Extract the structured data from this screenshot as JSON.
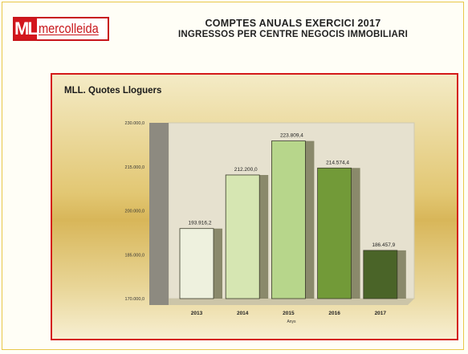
{
  "header": {
    "logo_mark": "ML",
    "logo_text": "mercolleida",
    "title_line1": "COMPTES ANUALS EXERCICI 2017",
    "title_line2": "INGRESSOS PER CENTRE NEGOCIS IMMOBILIARI"
  },
  "colors": {
    "brand_red": "#c8161b",
    "panel_border": "#d41a1a",
    "bar_colors": [
      "#eef1de",
      "#d6e6b2",
      "#b7d68b",
      "#729a38",
      "#4a6428"
    ]
  },
  "chart_data": {
    "type": "bar",
    "title": "MLL. Quotes Lloguers",
    "xlabel": "Anys",
    "ylabel": "",
    "categories": [
      "2013",
      "2014",
      "2015",
      "2016",
      "2017"
    ],
    "values": [
      193916.2,
      212200.0,
      223809.4,
      214574.4,
      186457.9
    ],
    "value_labels": [
      "193.916,2",
      "212.200,0",
      "223.809,4",
      "214.574,4",
      "186.457,9"
    ],
    "ylim": [
      170000,
      230000
    ],
    "yticks": [
      170000,
      185000,
      200000,
      215000,
      230000
    ],
    "ytick_labels": [
      "170.000,0",
      "185.000,0",
      "200.000,0",
      "215.000,0",
      "230.000,0"
    ],
    "grid": false,
    "legend": "none"
  }
}
